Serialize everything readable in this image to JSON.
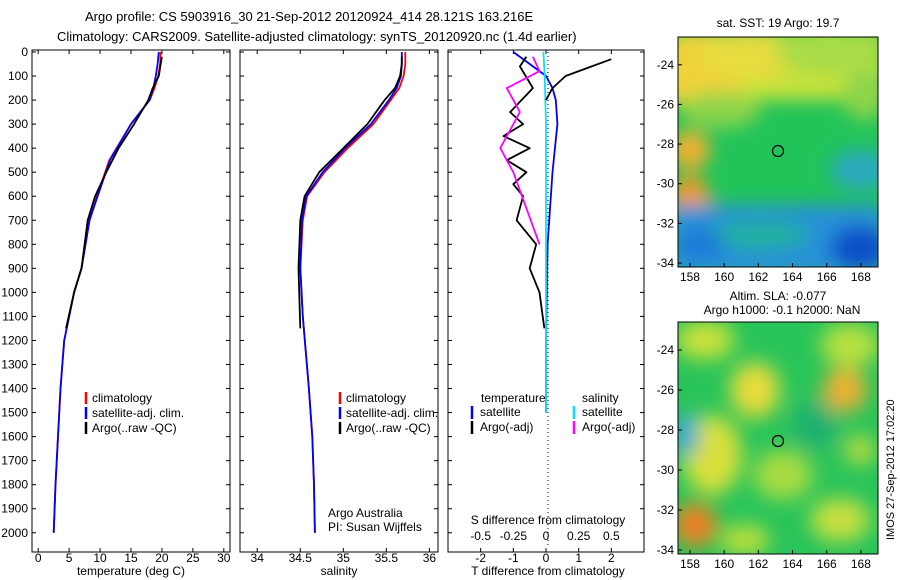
{
  "title_line1": "Argo profile: CS 5903916_30 21-Sep-2012 20120924_414 28.121S 163.216E",
  "title_line2": "Climatology: CARS2009. Satellite-adjusted climatology: synTS_20120920.nc (1.4d earlier)",
  "timestamp": "IMOS 27-Sep-2012 17:02:20",
  "credits": {
    "line1": "Argo Australia",
    "line2": "PI: Susan Wijffels"
  },
  "colors": {
    "climatology": "#ff0000",
    "satellite": "#0000ff",
    "argo": "#000000",
    "sal_satellite": "#00e5ff",
    "sal_argo": "#ff00ff"
  },
  "depth_ticks": [
    0,
    100,
    200,
    300,
    400,
    500,
    600,
    700,
    800,
    900,
    1000,
    1100,
    1200,
    1300,
    1400,
    1500,
    1600,
    1700,
    1800,
    1900,
    2000
  ],
  "chart_data": [
    {
      "type": "line",
      "xlabel": "temperature (deg C)",
      "xlim": [
        -1,
        31
      ],
      "ylim": [
        2080,
        0
      ],
      "xticks": [
        0,
        5,
        10,
        15,
        20,
        25,
        30
      ],
      "legend": [
        "climatology",
        "satellite-adj. clim.",
        "Argo(..raw -QC)"
      ],
      "legend_placement": "lower-right",
      "series": [
        {
          "name": "climatology",
          "x": [
            19.8,
            19.7,
            19.4,
            18.8,
            18.0,
            15.0,
            11.5,
            9.5,
            8.3,
            7.0,
            5.8,
            4.2,
            3.6,
            3.2,
            2.8,
            2.5
          ],
          "y": [
            0,
            50,
            100,
            150,
            200,
            300,
            450,
            600,
            700,
            900,
            1000,
            1200,
            1400,
            1600,
            1800,
            2000
          ]
        },
        {
          "name": "satellite-adj. clim.",
          "x": [
            19.5,
            19.3,
            19.0,
            18.6,
            18.0,
            15.0,
            11.6,
            9.6,
            8.3,
            7.0,
            5.8,
            4.2,
            3.6,
            3.2,
            2.8,
            2.5
          ],
          "y": [
            0,
            50,
            100,
            150,
            200,
            300,
            450,
            600,
            700,
            900,
            1000,
            1200,
            1400,
            1600,
            1800,
            2000
          ]
        },
        {
          "name": "Argo(..raw -QC)",
          "x": [
            20.0,
            19.8,
            19.5,
            18.5,
            17.8,
            15.5,
            13.0,
            11.0,
            9.2,
            8.0,
            7.0,
            5.8,
            4.5
          ],
          "y": [
            20,
            50,
            100,
            150,
            200,
            300,
            400,
            500,
            600,
            700,
            900,
            1000,
            1150
          ]
        }
      ]
    },
    {
      "type": "line",
      "xlabel": "salinity",
      "xlim": [
        33.8,
        36.1
      ],
      "ylim": [
        2080,
        0
      ],
      "xticks": [
        34,
        34.5,
        35,
        35.5,
        36
      ],
      "legend": [
        "climatology",
        "satellite-adj. clim.",
        "Argo(..raw -QC)"
      ],
      "legend_placement": "lower-right",
      "series": [
        {
          "name": "climatology",
          "x": [
            35.72,
            35.72,
            35.7,
            35.65,
            35.55,
            35.35,
            35.05,
            34.78,
            34.58,
            34.53,
            34.5,
            34.53,
            34.6,
            34.64,
            34.66,
            34.67
          ],
          "y": [
            0,
            50,
            100,
            150,
            200,
            300,
            400,
            500,
            600,
            700,
            900,
            1100,
            1400,
            1600,
            1800,
            2000
          ]
        },
        {
          "name": "satellite-adj. clim.",
          "x": [
            35.68,
            35.68,
            35.67,
            35.62,
            35.53,
            35.32,
            35.02,
            34.76,
            34.57,
            34.52,
            34.5,
            34.53,
            34.6,
            34.64,
            34.66,
            34.67
          ],
          "y": [
            0,
            50,
            100,
            150,
            200,
            300,
            400,
            500,
            600,
            700,
            900,
            1100,
            1400,
            1600,
            1800,
            2000
          ]
        },
        {
          "name": "Argo(..raw -QC)",
          "x": [
            35.68,
            35.68,
            35.66,
            35.6,
            35.48,
            35.28,
            35.0,
            34.72,
            34.55,
            34.5,
            34.48,
            34.5
          ],
          "y": [
            20,
            50,
            100,
            150,
            200,
            300,
            400,
            500,
            600,
            700,
            900,
            1150
          ]
        }
      ]
    },
    {
      "type": "line",
      "xlabel_top": "S difference from climatology",
      "xlabel": "T difference from climatology",
      "t_xlim": [
        -3,
        3
      ],
      "s_xlim": [
        -0.75,
        0.75
      ],
      "t_xticks": [
        -2,
        -1,
        0,
        1,
        2
      ],
      "s_xticks": [
        -0.5,
        -0.25,
        0,
        0.25,
        0.5
      ],
      "legend_titles": [
        "temperature",
        "salinity"
      ],
      "legend": [
        "satellite",
        "Argo(-adj)",
        "satellite",
        "Argo(-adj)"
      ],
      "legend_placement": "lower-right",
      "series": [
        {
          "name": "temperature satellite",
          "x": [
            -1.0,
            -0.5,
            0.0,
            0.2,
            0.3,
            0.35,
            0.2,
            0.05,
            0.0,
            0.0
          ],
          "y": [
            0,
            50,
            100,
            150,
            200,
            300,
            500,
            800,
            1200,
            1500
          ]
        },
        {
          "name": "temperature Argo(-adj)",
          "x": [
            -0.6,
            -0.8,
            -0.4,
            -1.1,
            -0.7,
            -1.3,
            -0.5,
            -1.2,
            -0.6,
            -1.0,
            -0.7,
            -0.9,
            -0.3,
            -0.5,
            -0.2,
            -0.1,
            -0.05
          ],
          "y": [
            20,
            60,
            150,
            250,
            300,
            350,
            400,
            450,
            500,
            550,
            600,
            700,
            800,
            900,
            1000,
            1100,
            1150
          ]
        },
        {
          "name": "salinity satellite",
          "x": [
            -0.02,
            -0.01,
            0.0,
            0.0,
            0.0,
            0.0
          ],
          "y": [
            0,
            100,
            300,
            700,
            1200,
            1500
          ]
        },
        {
          "name": "salinity Argo(-adj)",
          "x": [
            -0.1,
            -0.05,
            -0.3,
            -0.2,
            -0.35,
            -0.25,
            -0.15,
            -0.05
          ],
          "y": [
            20,
            80,
            150,
            250,
            400,
            500,
            650,
            800
          ]
        },
        {
          "name": "salinity Argo(-adj) black",
          "x": [
            0.5,
            0.35,
            0.15,
            0.05,
            0.0
          ],
          "y": [
            30,
            60,
            100,
            150,
            200
          ]
        }
      ]
    },
    {
      "type": "heatmap",
      "title": "sat. SST: 19 Argo: 19.7",
      "xlim": [
        157.3,
        169
      ],
      "ylim": [
        -34.2,
        -22.6
      ],
      "xticks": [
        158,
        160,
        162,
        164,
        166,
        168
      ],
      "yticks": [
        -24,
        -26,
        -28,
        -30,
        -32,
        -34
      ],
      "marker": {
        "lon": 163.216,
        "lat": -28.121
      }
    },
    {
      "type": "heatmap",
      "title": "Altim. SLA: -0.077",
      "subtitle": "Argo h1000: -0.1 h2000: NaN",
      "xlim": [
        157.3,
        169
      ],
      "ylim": [
        -34.2,
        -22.6
      ],
      "xticks": [
        158,
        160,
        162,
        164,
        166,
        168
      ],
      "yticks": [
        -24,
        -26,
        -28,
        -30,
        -32,
        -34
      ],
      "marker": {
        "lon": 163.216,
        "lat": -28.121
      }
    }
  ]
}
